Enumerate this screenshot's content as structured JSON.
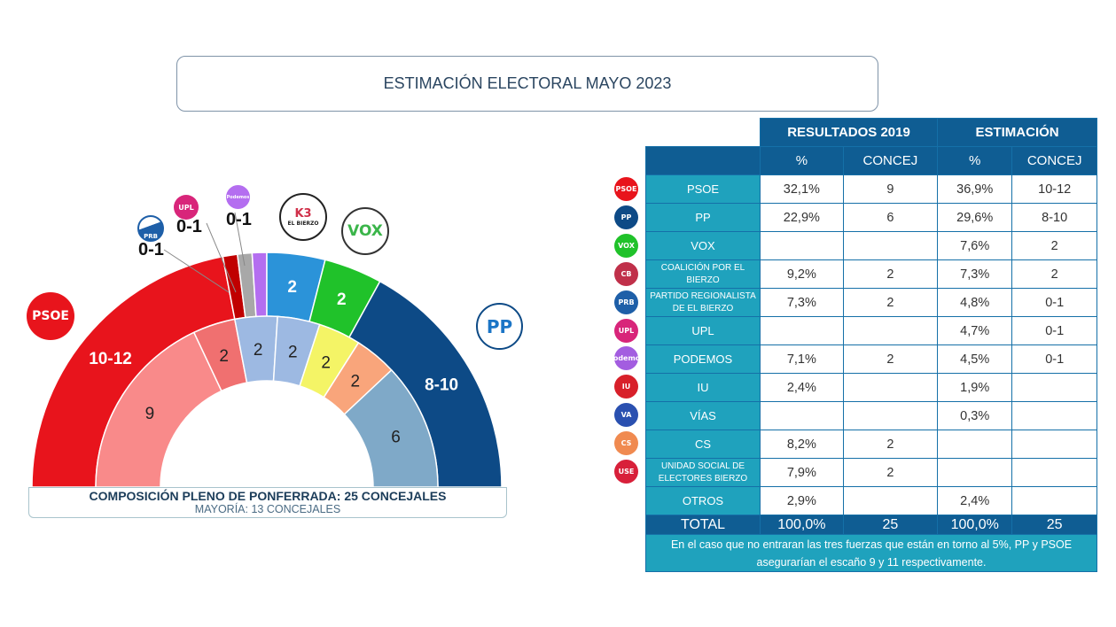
{
  "title": "ESTIMACIÓN ELECTORAL MAYO 2023",
  "chart_data": {
    "type": "parliament",
    "caption": "COMPOSICIÓN PLENO DE PONFERRADA: 25 CONCEJALES",
    "subcaption": "MAYORÍA: 13 CONCEJALES",
    "total_seats": 25,
    "series": [
      {
        "ring": "outer",
        "segments": [
          {
            "party": "PSOE",
            "label": "10-12",
            "seats": 11,
            "color": "#e8141c",
            "logo": "PSOE"
          },
          {
            "party": "PRB",
            "label": "0-1",
            "seats": 0.5,
            "color": "#c00000",
            "logo": "PRB"
          },
          {
            "party": "UPL",
            "label": "0-1",
            "seats": 0.5,
            "color": "#a8a8a8",
            "logo": "UPL"
          },
          {
            "party": "PODEMOS",
            "label": "0-1",
            "seats": 0.5,
            "color": "#b46ef0",
            "logo": "Podemos"
          },
          {
            "party": "COALICIÓN POR EL BIERZO",
            "label": "2",
            "seats": 2,
            "color": "#2b93d9",
            "logo": "EL BIERZO"
          },
          {
            "party": "VOX",
            "label": "2",
            "seats": 2,
            "color": "#20c22a",
            "logo": "VOX"
          },
          {
            "party": "PP",
            "label": "8-10",
            "seats": 8.5,
            "color": "#0d4a86",
            "logo": "PP"
          }
        ]
      },
      {
        "ring": "inner",
        "segments": [
          {
            "label": "9",
            "seats": 9,
            "color": "#f98a8a"
          },
          {
            "label": "2",
            "seats": 2,
            "color": "#f07070"
          },
          {
            "label": "2",
            "seats": 2,
            "color": "#9db9e2"
          },
          {
            "label": "2",
            "seats": 2,
            "color": "#9db9e2"
          },
          {
            "label": "2",
            "seats": 2,
            "color": "#f4f466"
          },
          {
            "label": "2",
            "seats": 2,
            "color": "#f9a57b"
          },
          {
            "label": "6",
            "seats": 6,
            "color": "#7fa9c8"
          }
        ]
      }
    ]
  },
  "table": {
    "group_headers": [
      "RESULTADOS 2019",
      "ESTIMACIÓN"
    ],
    "sub_headers": [
      "%",
      "CONCEJ",
      "%",
      "CONCEJ"
    ],
    "rows": [
      {
        "party": "PSOE",
        "logo": "PSOE",
        "logo_color": "#e8141c",
        "cells": [
          "32,1%",
          "9",
          "36,9%",
          "10-12"
        ]
      },
      {
        "party": "PP",
        "logo": "PP",
        "logo_color": "#0d4a86",
        "cells": [
          "22,9%",
          "6",
          "29,6%",
          "8-10"
        ]
      },
      {
        "party": "VOX",
        "logo": "VOX",
        "logo_color": "#20c22a",
        "cells": [
          "",
          "",
          "7,6%",
          "2"
        ]
      },
      {
        "party": "COALICIÓN POR EL BIERZO",
        "logo": "CB",
        "logo_color": "#c0304a",
        "cells": [
          "9,2%",
          "2",
          "7,3%",
          "2"
        ]
      },
      {
        "party": "PARTIDO REGIONALISTA DE EL BIERZO",
        "logo": "PRB",
        "logo_color": "#1e5fa8",
        "cells": [
          "7,3%",
          "2",
          "4,8%",
          "0-1"
        ]
      },
      {
        "party": "UPL",
        "logo": "UPL",
        "logo_color": "#d8257a",
        "cells": [
          "",
          "",
          "4,7%",
          "0-1"
        ]
      },
      {
        "party": "PODEMOS",
        "logo": "Podemos",
        "logo_color": "#a35de0",
        "cells": [
          "7,1%",
          "2",
          "4,5%",
          "0-1"
        ]
      },
      {
        "party": "IU",
        "logo": "IU",
        "logo_color": "#d8202a",
        "cells": [
          "2,4%",
          "",
          "1,9%",
          ""
        ]
      },
      {
        "party": "VÍAS",
        "logo": "VA",
        "logo_color": "#2a50b0",
        "cells": [
          "",
          "",
          "0,3%",
          ""
        ]
      },
      {
        "party": "CS",
        "logo": "CS",
        "logo_color": "#f08a50",
        "cells": [
          "8,2%",
          "2",
          "",
          ""
        ]
      },
      {
        "party": "UNIDAD SOCIAL DE ELECTORES BIERZO",
        "logo": "USE",
        "logo_color": "#d8203a",
        "cells": [
          "7,9%",
          "2",
          "",
          ""
        ]
      },
      {
        "party": "OTROS",
        "logo": "",
        "logo_color": "",
        "cells": [
          "2,9%",
          "",
          "2,4%",
          ""
        ]
      }
    ],
    "total": {
      "label": "TOTAL",
      "cells": [
        "100,0%",
        "25",
        "100,0%",
        "25"
      ]
    },
    "note": "En el caso que no entraran las tres fuerzas que están en torno al 5%, PP y PSOE asegurarían el escaño 9 y 11 respectivamente."
  }
}
